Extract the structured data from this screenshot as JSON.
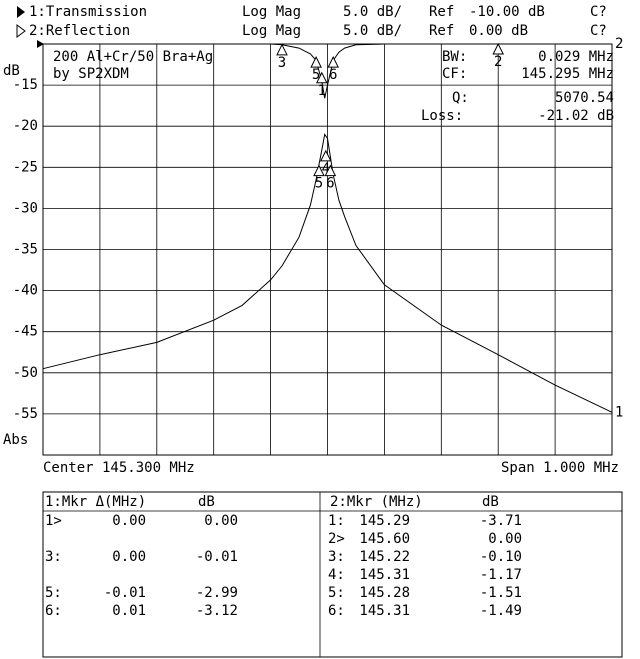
{
  "header": {
    "traces": [
      {
        "format": "Log Mag",
        "scale": "5.0 dB/",
        "ref": "Ref",
        "ref_value": "-10.00 dB",
        "status": "C?"
      },
      {
        "format": "Log Mag",
        "scale": "5.0 dB/",
        "ref": "Ref",
        "ref_value": "0.00 dB",
        "status": "C?"
      }
    ]
  },
  "chart_data": {
    "type": "line",
    "y_label": "dB",
    "y_unit_label": "Abs",
    "x_label_left": "Center 145.300 MHz",
    "x_label_right": "Span 1.000 MHz",
    "annotation": [
      "200 Al+Cr/50 Bra+Ag",
      "by SP2XDM"
    ],
    "stats": [
      {
        "label": "BW:",
        "value": "0.029 MHz"
      },
      {
        "label": "CF:",
        "value": "145.295 MHz"
      },
      {
        "label": "Q:",
        "value": "5070.54"
      },
      {
        "label": "Loss:",
        "value": "-21.02 dB"
      }
    ],
    "xlim": [
      144.8,
      145.8
    ],
    "ylim": [
      -60,
      -10
    ],
    "yticks": [
      -15,
      -20,
      -25,
      -30,
      -35,
      -40,
      -45,
      -50,
      -55
    ],
    "grid": true,
    "x": [
      144.8,
      144.9,
      145.0,
      145.1,
      145.15,
      145.2,
      145.22,
      145.25,
      145.27,
      145.28,
      145.29,
      145.295,
      145.3,
      145.31,
      145.32,
      145.33,
      145.35,
      145.4,
      145.5,
      145.6,
      145.7,
      145.8
    ],
    "series": [
      {
        "name": "1:Transmission",
        "end_label": "1",
        "color": "#000000",
        "values": [
          -49.5,
          -47.8,
          -46.3,
          -43.6,
          -41.8,
          -38.7,
          -37.0,
          -33.5,
          -29.6,
          -26.5,
          -22.9,
          -21.0,
          -21.5,
          -25.9,
          -29.0,
          -31.0,
          -34.5,
          -39.3,
          -44.2,
          -47.8,
          -51.5,
          -54.8
        ]
      },
      {
        "name": "2:Reflection",
        "end_label": "2",
        "color": "#000000",
        "values": [
          -10,
          -10,
          -10,
          -10,
          -10,
          -10,
          -10.1,
          -10.5,
          -11.2,
          -12.0,
          -14.5,
          -16.6,
          -15.0,
          -12.0,
          -11.0,
          -10.5,
          -10.1,
          -10,
          -10,
          -10,
          -10,
          -10
        ]
      }
    ],
    "markers": [
      {
        "label": "3",
        "x": 145.22,
        "y": -10.1
      },
      {
        "label": "5",
        "x": 145.28,
        "y": -11.6
      },
      {
        "label": "6",
        "x": 145.31,
        "y": -11.6
      },
      {
        "label": "1",
        "x": 145.29,
        "y": -13.5
      },
      {
        "label": "2",
        "x": 145.6,
        "y": -10
      },
      {
        "label": "4",
        "x": 145.297,
        "y": -23.0
      },
      {
        "label": "5",
        "x": 145.285,
        "y": -24.8
      },
      {
        "label": "6",
        "x": 145.305,
        "y": -24.8
      }
    ]
  },
  "marker_tables": [
    {
      "title": "1:Mkr Δ(MHz)",
      "unit": "dB",
      "rows": [
        [
          "1>",
          "0.00",
          "0.00"
        ],
        [
          "3:",
          "0.00",
          "-0.01"
        ],
        [
          "5:",
          "-0.01",
          "-2.99"
        ],
        [
          "6:",
          "0.01",
          "-3.12"
        ]
      ]
    },
    {
      "title": "2:Mkr (MHz)",
      "unit": "dB",
      "rows": [
        [
          "1:",
          "145.29",
          "-3.71"
        ],
        [
          "2>",
          "145.60",
          "0.00"
        ],
        [
          "3:",
          "145.22",
          "-0.10"
        ],
        [
          "4:",
          "145.31",
          "-1.17"
        ],
        [
          "5:",
          "145.28",
          "-1.51"
        ],
        [
          "6:",
          "145.31",
          "-1.49"
        ]
      ]
    }
  ]
}
